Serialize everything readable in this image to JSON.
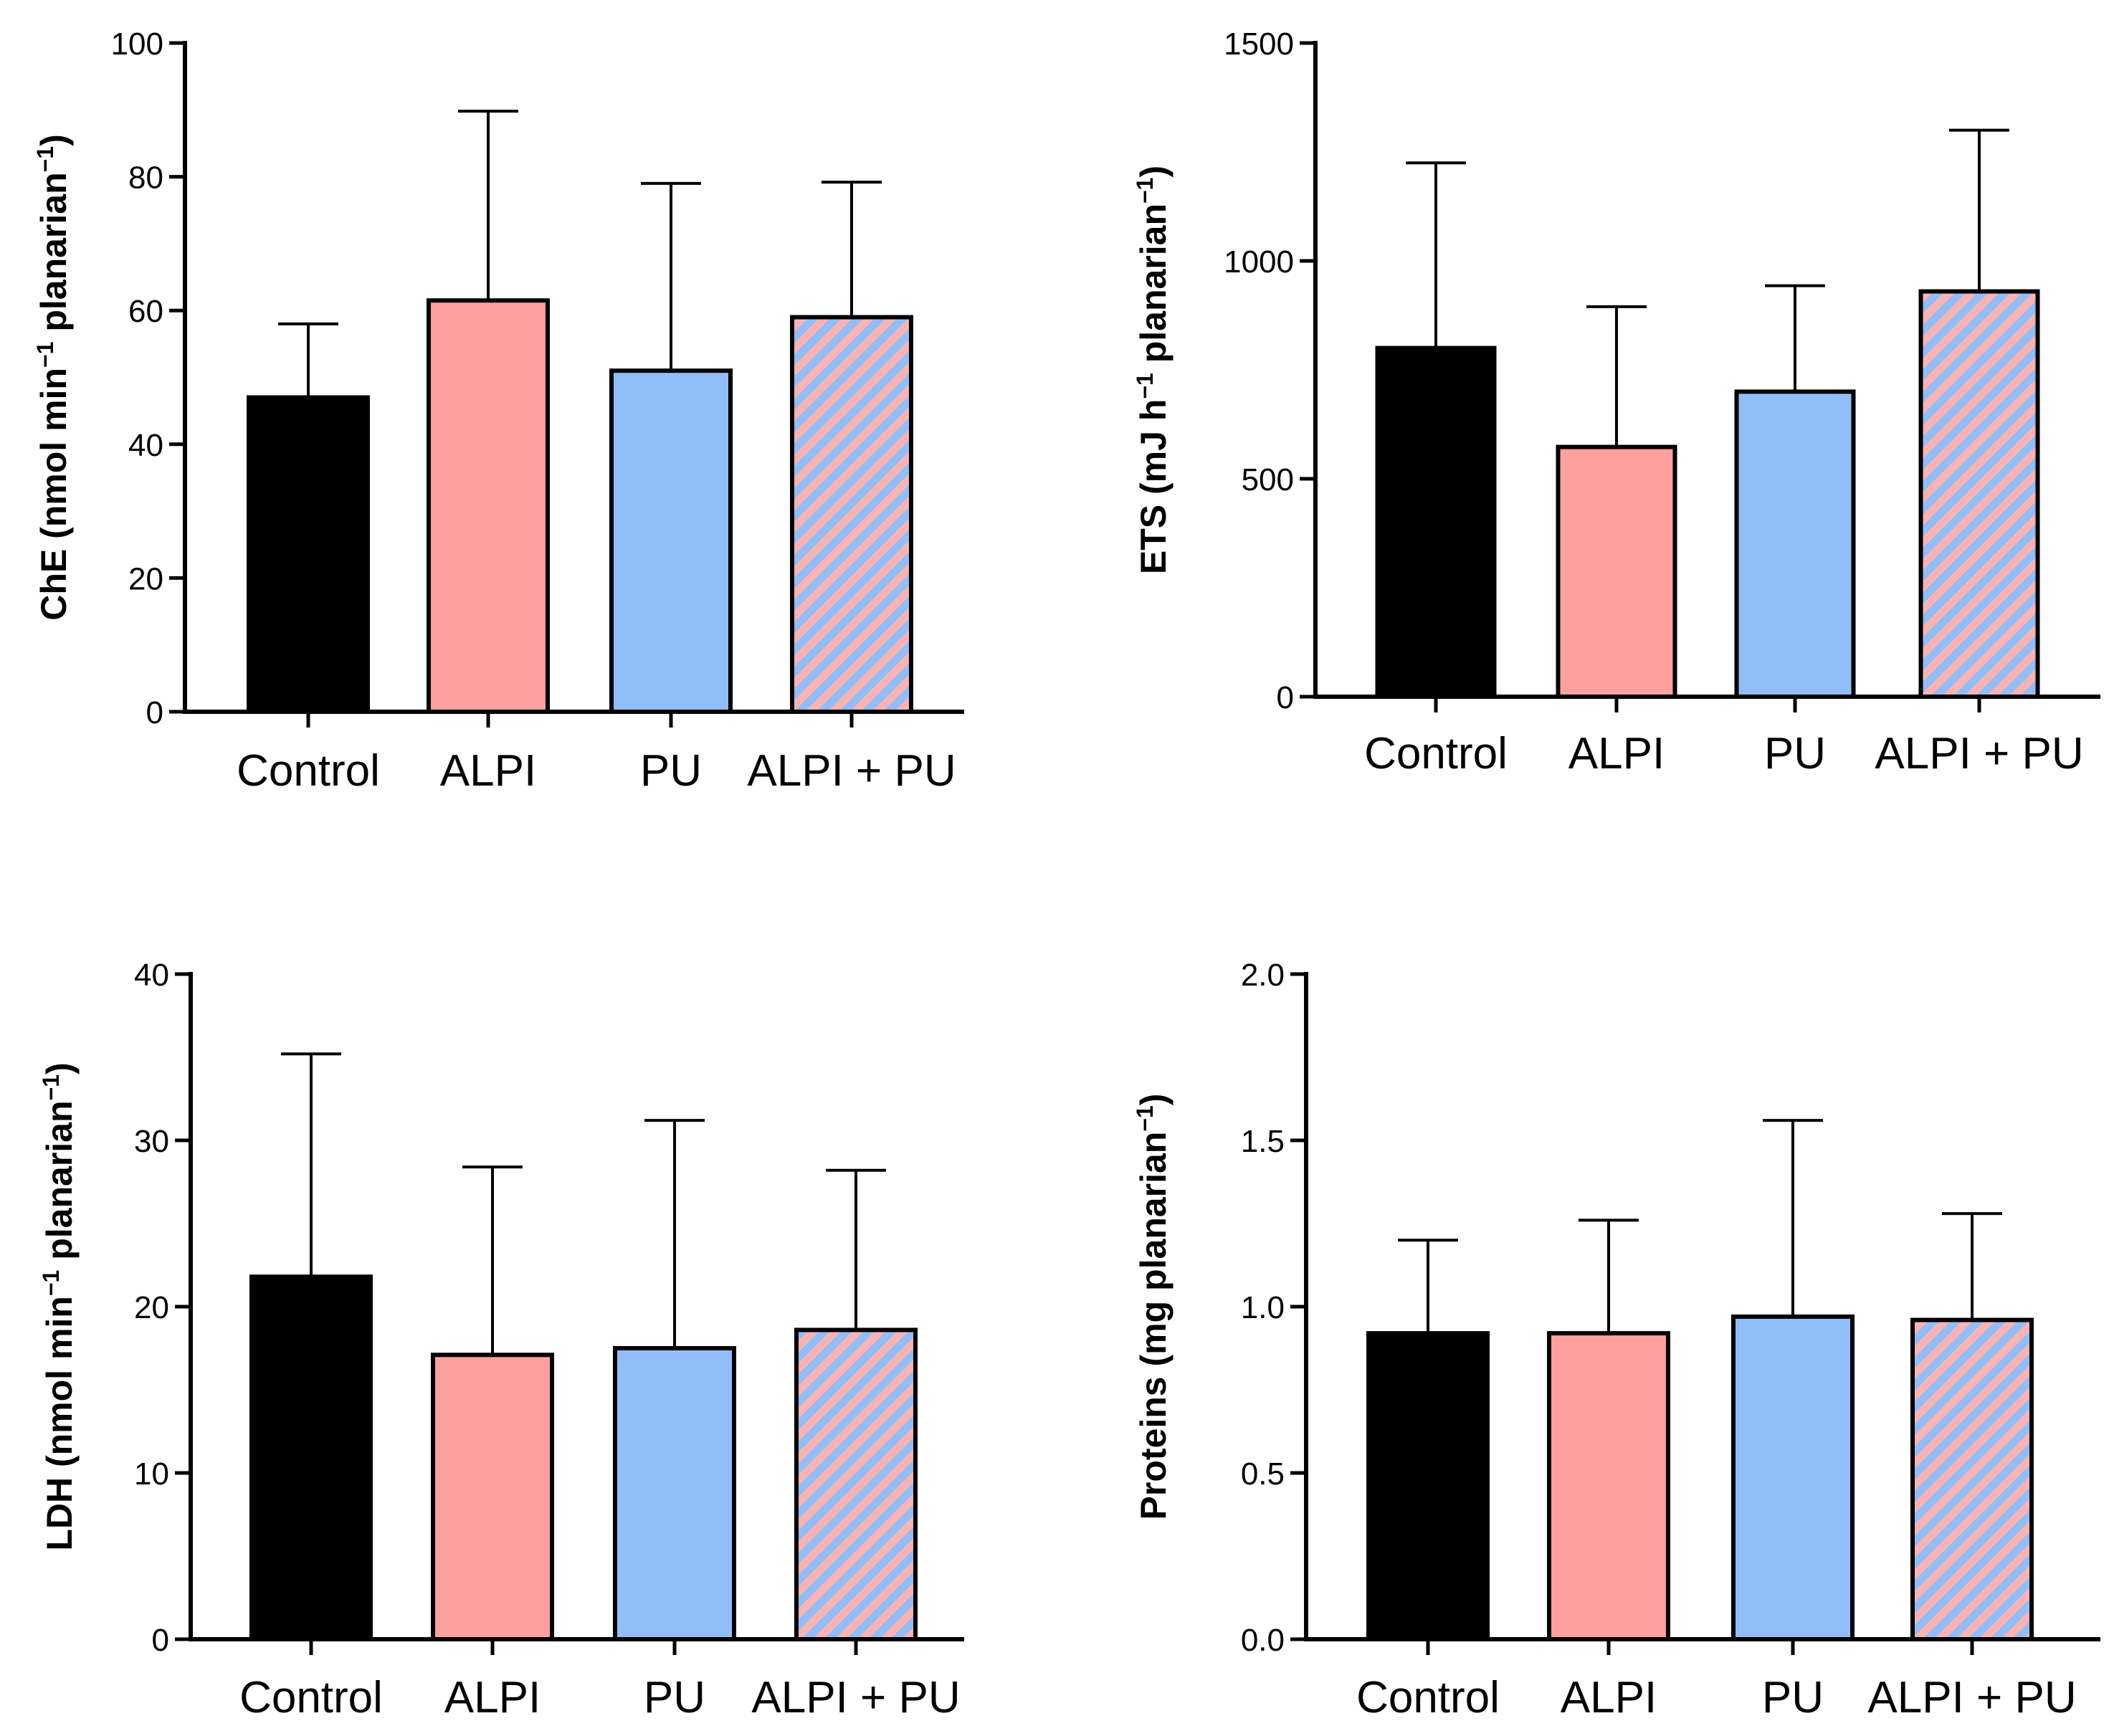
{
  "chart_data": [
    {
      "type": "bar",
      "panel": "top-left",
      "ylabel": {
        "main": "ChE (nmol min",
        "sup1": "−1",
        "mid": " planarian",
        "sup2": "−1",
        "end": ")"
      },
      "ylim": [
        0,
        100
      ],
      "yticks": [
        "0",
        "20",
        "40",
        "60",
        "80",
        "100"
      ],
      "ytick_values": [
        0,
        20,
        40,
        60,
        80,
        100
      ],
      "categories": [
        "Control",
        "ALPI",
        "PU",
        "ALPI + PU"
      ],
      "values": [
        47,
        61.5,
        51,
        59
      ],
      "errors": [
        58,
        89.8,
        79,
        79.2
      ],
      "fills": [
        "#000000",
        "#fea09e",
        "#91bef8",
        "stripe"
      ]
    },
    {
      "type": "bar",
      "panel": "top-right",
      "ylabel": {
        "main": "ETS (mJ h",
        "sup1": "−1",
        "mid": " planarian",
        "sup2": "−1",
        "end": ")"
      },
      "ylim": [
        0,
        1500
      ],
      "yticks": [
        "0",
        "500",
        "1000",
        "1500"
      ],
      "ytick_values": [
        0,
        500,
        1000,
        1500
      ],
      "categories": [
        "Control",
        "ALPI",
        "PU",
        "ALPI + PU"
      ],
      "values": [
        800,
        573,
        700,
        930
      ],
      "errors": [
        1225,
        895,
        943,
        1300
      ],
      "fills": [
        "#000000",
        "#fea09e",
        "#91bef8",
        "stripe"
      ]
    },
    {
      "type": "bar",
      "panel": "bottom-left",
      "ylabel": {
        "main": "LDH (nmol min",
        "sup1": "−1",
        "mid": " planarian",
        "sup2": "−1",
        "end": ")"
      },
      "ylim": [
        0,
        40
      ],
      "yticks": [
        "0",
        "10",
        "20",
        "30",
        "40"
      ],
      "ytick_values": [
        0,
        10,
        20,
        30,
        40
      ],
      "categories": [
        "Control",
        "ALPI",
        "PU",
        "ALPI + PU"
      ],
      "values": [
        21.8,
        17.1,
        17.5,
        18.6
      ],
      "errors": [
        35.2,
        28.4,
        31.2,
        28.2
      ],
      "fills": [
        "#000000",
        "#fea09e",
        "#91bef8",
        "stripe"
      ]
    },
    {
      "type": "bar",
      "panel": "bottom-right",
      "ylabel": {
        "main": "Proteins (mg planarian",
        "sup1": "−1",
        "mid": "",
        "sup2": "",
        "end": ")"
      },
      "ylim": [
        0,
        2.0
      ],
      "yticks": [
        "0.0",
        "0.5",
        "1.0",
        "1.5",
        "2.0"
      ],
      "ytick_values": [
        0,
        0.5,
        1.0,
        1.5,
        2.0
      ],
      "categories": [
        "Control",
        "ALPI",
        "PU",
        "ALPI + PU"
      ],
      "values": [
        0.92,
        0.92,
        0.97,
        0.96
      ],
      "errors": [
        1.2,
        1.26,
        1.56,
        1.28
      ],
      "fills": [
        "#000000",
        "#fea09e",
        "#91bef8",
        "stripe"
      ]
    }
  ],
  "colors": {
    "stripe_pink": "#f9b3b3",
    "stripe_blue": "#91bef8",
    "axis": "#000000"
  }
}
